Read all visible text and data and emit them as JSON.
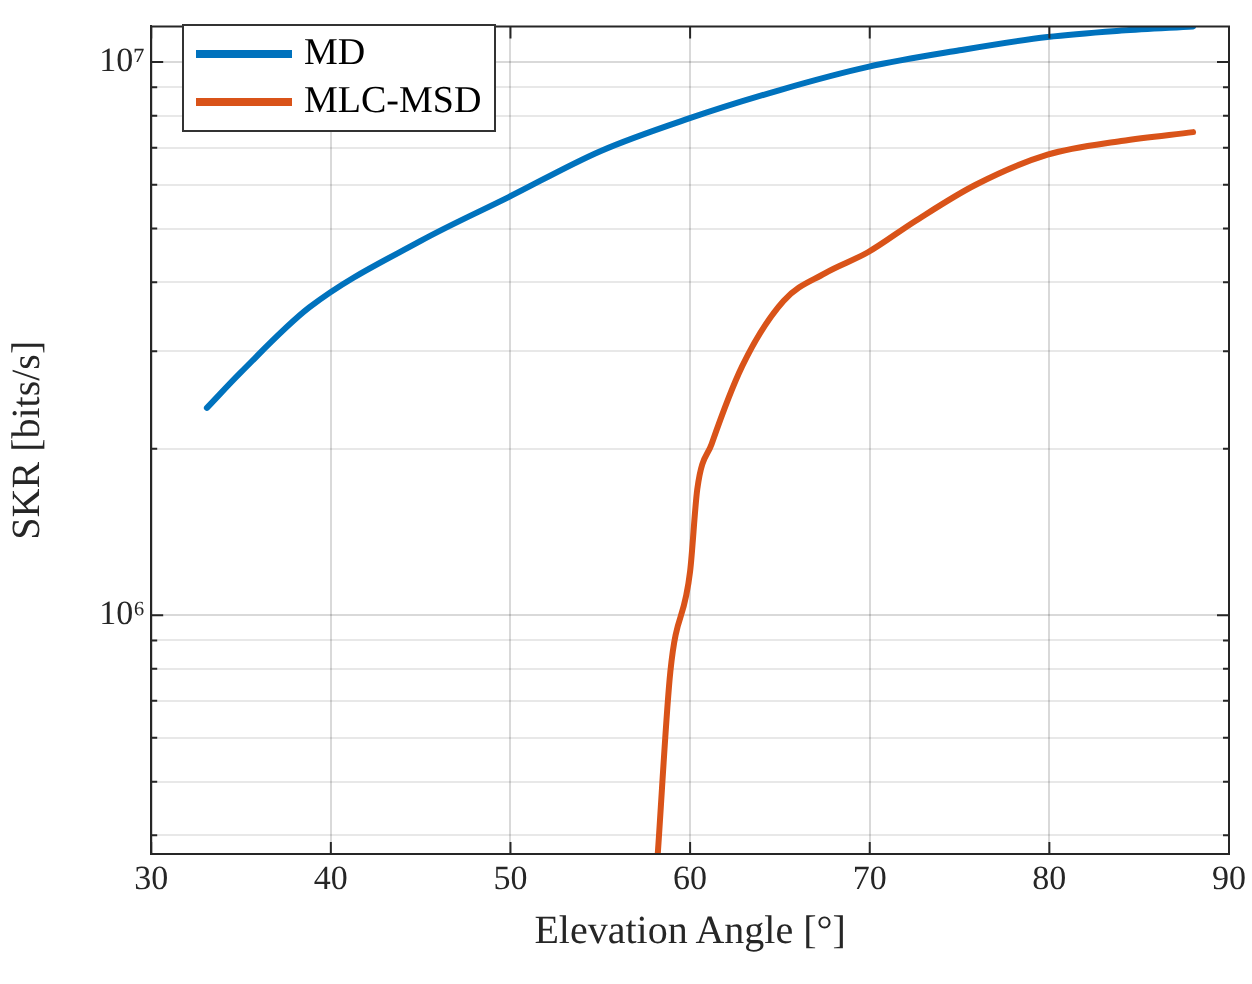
{
  "chart_data": {
    "type": "line",
    "xlabel": "Elevation Angle [°]",
    "ylabel": "SKR [bits/s]",
    "xlim": [
      30,
      90
    ],
    "xticks": [
      30,
      40,
      50,
      60,
      70,
      80,
      90
    ],
    "ylim": [
      370000,
      11600000
    ],
    "log": true,
    "yticks": [
      {
        "value": 400000,
        "label": null
      },
      {
        "value": 500000,
        "label": null
      },
      {
        "value": 600000,
        "label": null
      },
      {
        "value": 700000,
        "label": null
      },
      {
        "value": 800000,
        "label": null
      },
      {
        "value": 900000,
        "label": null
      },
      {
        "value": 1000000,
        "label": "10⁶"
      },
      {
        "value": 2000000,
        "label": null
      },
      {
        "value": 3000000,
        "label": null
      },
      {
        "value": 4000000,
        "label": null
      },
      {
        "value": 5000000,
        "label": null
      },
      {
        "value": 6000000,
        "label": null
      },
      {
        "value": 7000000,
        "label": null
      },
      {
        "value": 8000000,
        "label": null
      },
      {
        "value": 9000000,
        "label": null
      },
      {
        "value": 10000000,
        "label": "10⁷"
      }
    ],
    "grid": true,
    "legend": "top left",
    "marker": "none",
    "line_style": "solid",
    "series": [
      {
        "name": "MD",
        "color": "#0072bd",
        "x": [
          33.1,
          35,
          38.8,
          45,
          49.9,
          55,
          59.9,
          65,
          69.9,
          75,
          79.9,
          84,
          88
        ],
        "values": [
          2370000,
          2750000,
          3600000,
          4750000,
          5700000,
          6900000,
          7900000,
          8900000,
          9800000,
          10500000,
          11100000,
          11400000,
          11600000
        ]
      },
      {
        "name": "MLC-MSD",
        "color": "#d95319",
        "x": [
          58.2,
          58.9,
          60,
          60.4,
          61.2,
          62.9,
          65.2,
          67.5,
          69.9,
          72.5,
          75.9,
          79.9,
          84,
          88
        ],
        "values": [
          370000,
          790000,
          1200000,
          1690000,
          2040000,
          2820000,
          3700000,
          4150000,
          4530000,
          5150000,
          6000000,
          6800000,
          7200000,
          7470000
        ]
      }
    ]
  }
}
